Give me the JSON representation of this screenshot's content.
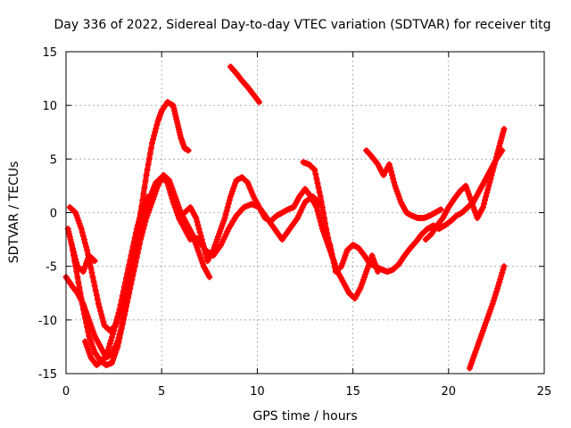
{
  "chart_data": {
    "type": "scatter",
    "title": "Day 336 of 2022, Sidereal Day-to-day VTEC variation (SDTVAR) for receiver titg",
    "xlabel": "GPS time / hours",
    "ylabel": "SDTVAR / TECUs",
    "xlim": [
      0,
      25
    ],
    "ylim": [
      -15,
      15
    ],
    "xticks": [
      0,
      5,
      10,
      15,
      20,
      25
    ],
    "yticks": [
      -15,
      -10,
      -5,
      0,
      5,
      10,
      15
    ],
    "grid": true,
    "marker": "+",
    "color": "#ff0000",
    "series": [
      {
        "x": [
          0.1,
          0.3,
          0.6,
          0.9,
          1.2,
          1.5,
          1.8,
          2.1,
          2.4,
          2.7,
          3.0,
          3.3,
          3.6,
          3.9,
          4.2,
          4.5,
          4.8,
          5.0,
          5.3,
          5.6,
          5.8,
          6.0,
          6.2,
          6.4
        ],
        "y": [
          -1.5,
          -3.0,
          -6.0,
          -9.0,
          -11.5,
          -13.0,
          -13.8,
          -14.2,
          -14.0,
          -12.5,
          -10.0,
          -7.0,
          -3.5,
          0.0,
          3.5,
          6.5,
          8.5,
          9.5,
          10.3,
          10.0,
          8.5,
          7.0,
          6.0,
          5.8
        ]
      },
      {
        "x": [
          0.2,
          0.5,
          0.8,
          1.1,
          1.4,
          1.7,
          2.0,
          2.3,
          2.6,
          2.9,
          3.2,
          3.5,
          3.8,
          4.1,
          4.4,
          4.7,
          5.0,
          5.3,
          5.6,
          5.9,
          6.2,
          6.5
        ],
        "y": [
          0.5,
          0.0,
          -1.5,
          -3.5,
          -6.0,
          -8.5,
          -10.5,
          -11.0,
          -10.5,
          -9.0,
          -7.0,
          -4.5,
          -2.0,
          0.0,
          1.5,
          2.8,
          3.3,
          2.8,
          1.0,
          -0.5,
          -1.5,
          -2.5
        ]
      },
      {
        "x": [
          0.0,
          0.3,
          0.6,
          0.9,
          1.2,
          1.5,
          1.8,
          2.1,
          2.4,
          2.7,
          3.0,
          3.3,
          3.6,
          3.9,
          4.2,
          4.5,
          4.8,
          5.1,
          5.4,
          5.7,
          6.0,
          6.3,
          6.6,
          6.9,
          7.2,
          7.5
        ],
        "y": [
          -6.0,
          -6.8,
          -7.5,
          -8.5,
          -10.0,
          -11.5,
          -12.5,
          -13.5,
          -13.2,
          -12.0,
          -10.0,
          -7.5,
          -5.0,
          -2.5,
          -0.5,
          1.0,
          2.5,
          3.5,
          3.0,
          1.5,
          0.0,
          -1.0,
          -2.0,
          -3.5,
          -5.0,
          -6.0
        ]
      },
      {
        "x": [
          1.0,
          1.3,
          1.6,
          1.9,
          2.2,
          2.5,
          2.8,
          3.1,
          3.4,
          3.7,
          4.0,
          4.3
        ],
        "y": [
          -12.0,
          -13.5,
          -14.2,
          -13.8,
          -12.8,
          -11.0,
          -9.0,
          -6.5,
          -4.0,
          -1.5,
          0.5,
          1.5
        ]
      },
      {
        "x": [
          6.2,
          6.5,
          6.8,
          7.1,
          7.4,
          7.7,
          8.0,
          8.3,
          8.6,
          8.9,
          9.2,
          9.5,
          9.8,
          10.1,
          10.4,
          10.7,
          11.0,
          11.3,
          11.6,
          11.9,
          12.2,
          12.5,
          12.8,
          13.1,
          13.4,
          13.7,
          14.0
        ],
        "y": [
          0.0,
          0.5,
          -0.5,
          -2.5,
          -4.5,
          -3.5,
          -2.0,
          -0.5,
          1.5,
          3.0,
          3.3,
          2.8,
          1.5,
          0.5,
          -0.5,
          -0.8,
          -0.3,
          0.0,
          0.3,
          0.5,
          1.5,
          2.2,
          1.5,
          0.5,
          -1.5,
          -3.0,
          -4.5
        ]
      },
      {
        "x": [
          6.5,
          6.9,
          7.3,
          7.7,
          8.1,
          8.5,
          8.9,
          9.3,
          9.7,
          10.1,
          10.5,
          10.9,
          11.3,
          11.7,
          12.1,
          12.5,
          12.9,
          13.3
        ],
        "y": [
          -2.0,
          -2.5,
          -3.5,
          -4.0,
          -3.0,
          -1.5,
          -0.3,
          0.5,
          0.8,
          0.5,
          -0.5,
          -1.5,
          -2.5,
          -1.5,
          -0.5,
          1.0,
          1.5,
          0.8
        ]
      },
      {
        "x": [
          8.6,
          8.9,
          9.2,
          9.5,
          9.8,
          10.1
        ],
        "y": [
          13.6,
          13.0,
          12.3,
          11.7,
          11.0,
          10.3
        ]
      },
      {
        "x": [
          12.4,
          12.7,
          13.0,
          13.3,
          13.6,
          13.9,
          14.2,
          14.5,
          14.8,
          15.1,
          15.4,
          15.7,
          16.0,
          16.3
        ],
        "y": [
          4.7,
          4.5,
          4.0,
          1.5,
          -1.5,
          -4.0,
          -5.5,
          -6.5,
          -7.5,
          -8.0,
          -7.0,
          -5.5,
          -4.0,
          -5.5
        ]
      },
      {
        "x": [
          13.8,
          14.1,
          14.4,
          14.7,
          15.0,
          15.3,
          15.6,
          15.9,
          16.2,
          16.5,
          16.8,
          17.1,
          17.4,
          17.7,
          18.0,
          18.3,
          18.6,
          18.9,
          19.2,
          19.5,
          19.8,
          20.1,
          20.4,
          20.7,
          21.0,
          21.3,
          21.6,
          21.9,
          22.2,
          22.5,
          22.8
        ],
        "y": [
          -3.0,
          -5.5,
          -5.0,
          -3.5,
          -3.0,
          -3.3,
          -4.0,
          -4.8,
          -5.0,
          -5.3,
          -5.5,
          -5.3,
          -4.8,
          -4.0,
          -3.3,
          -2.7,
          -2.0,
          -1.5,
          -1.2,
          -1.5,
          -1.2,
          -0.8,
          -0.3,
          0.0,
          0.5,
          1.0,
          2.0,
          3.0,
          4.0,
          5.0,
          5.8
        ]
      },
      {
        "x": [
          15.7,
          16.0,
          16.3,
          16.6,
          16.9,
          17.2,
          17.5,
          17.8,
          18.1,
          18.4,
          18.7,
          19.0,
          19.3,
          19.6
        ],
        "y": [
          5.8,
          5.2,
          4.5,
          3.5,
          4.5,
          2.5,
          1.0,
          0.0,
          -0.3,
          -0.5,
          -0.5,
          -0.3,
          0.0,
          0.3
        ]
      },
      {
        "x": [
          18.8,
          19.1,
          19.4,
          19.7,
          20.0,
          20.3,
          20.6,
          20.9,
          21.2,
          21.5,
          21.8,
          22.1,
          22.4,
          22.7,
          22.9
        ],
        "y": [
          -2.5,
          -2.0,
          -1.2,
          -0.5,
          0.5,
          1.3,
          2.0,
          2.5,
          1.0,
          -0.5,
          0.5,
          2.5,
          4.5,
          6.5,
          7.8
        ]
      },
      {
        "x": [
          21.1,
          21.4,
          21.7,
          22.0,
          22.3,
          22.6,
          22.9
        ],
        "y": [
          -14.5,
          -13.0,
          -11.5,
          -10.0,
          -8.5,
          -6.8,
          -5.0
        ]
      },
      {
        "x": [
          0.3,
          0.6,
          0.9,
          1.2,
          1.5
        ],
        "y": [
          -3.0,
          -5.0,
          -5.5,
          -4.0,
          -4.5
        ]
      }
    ]
  }
}
